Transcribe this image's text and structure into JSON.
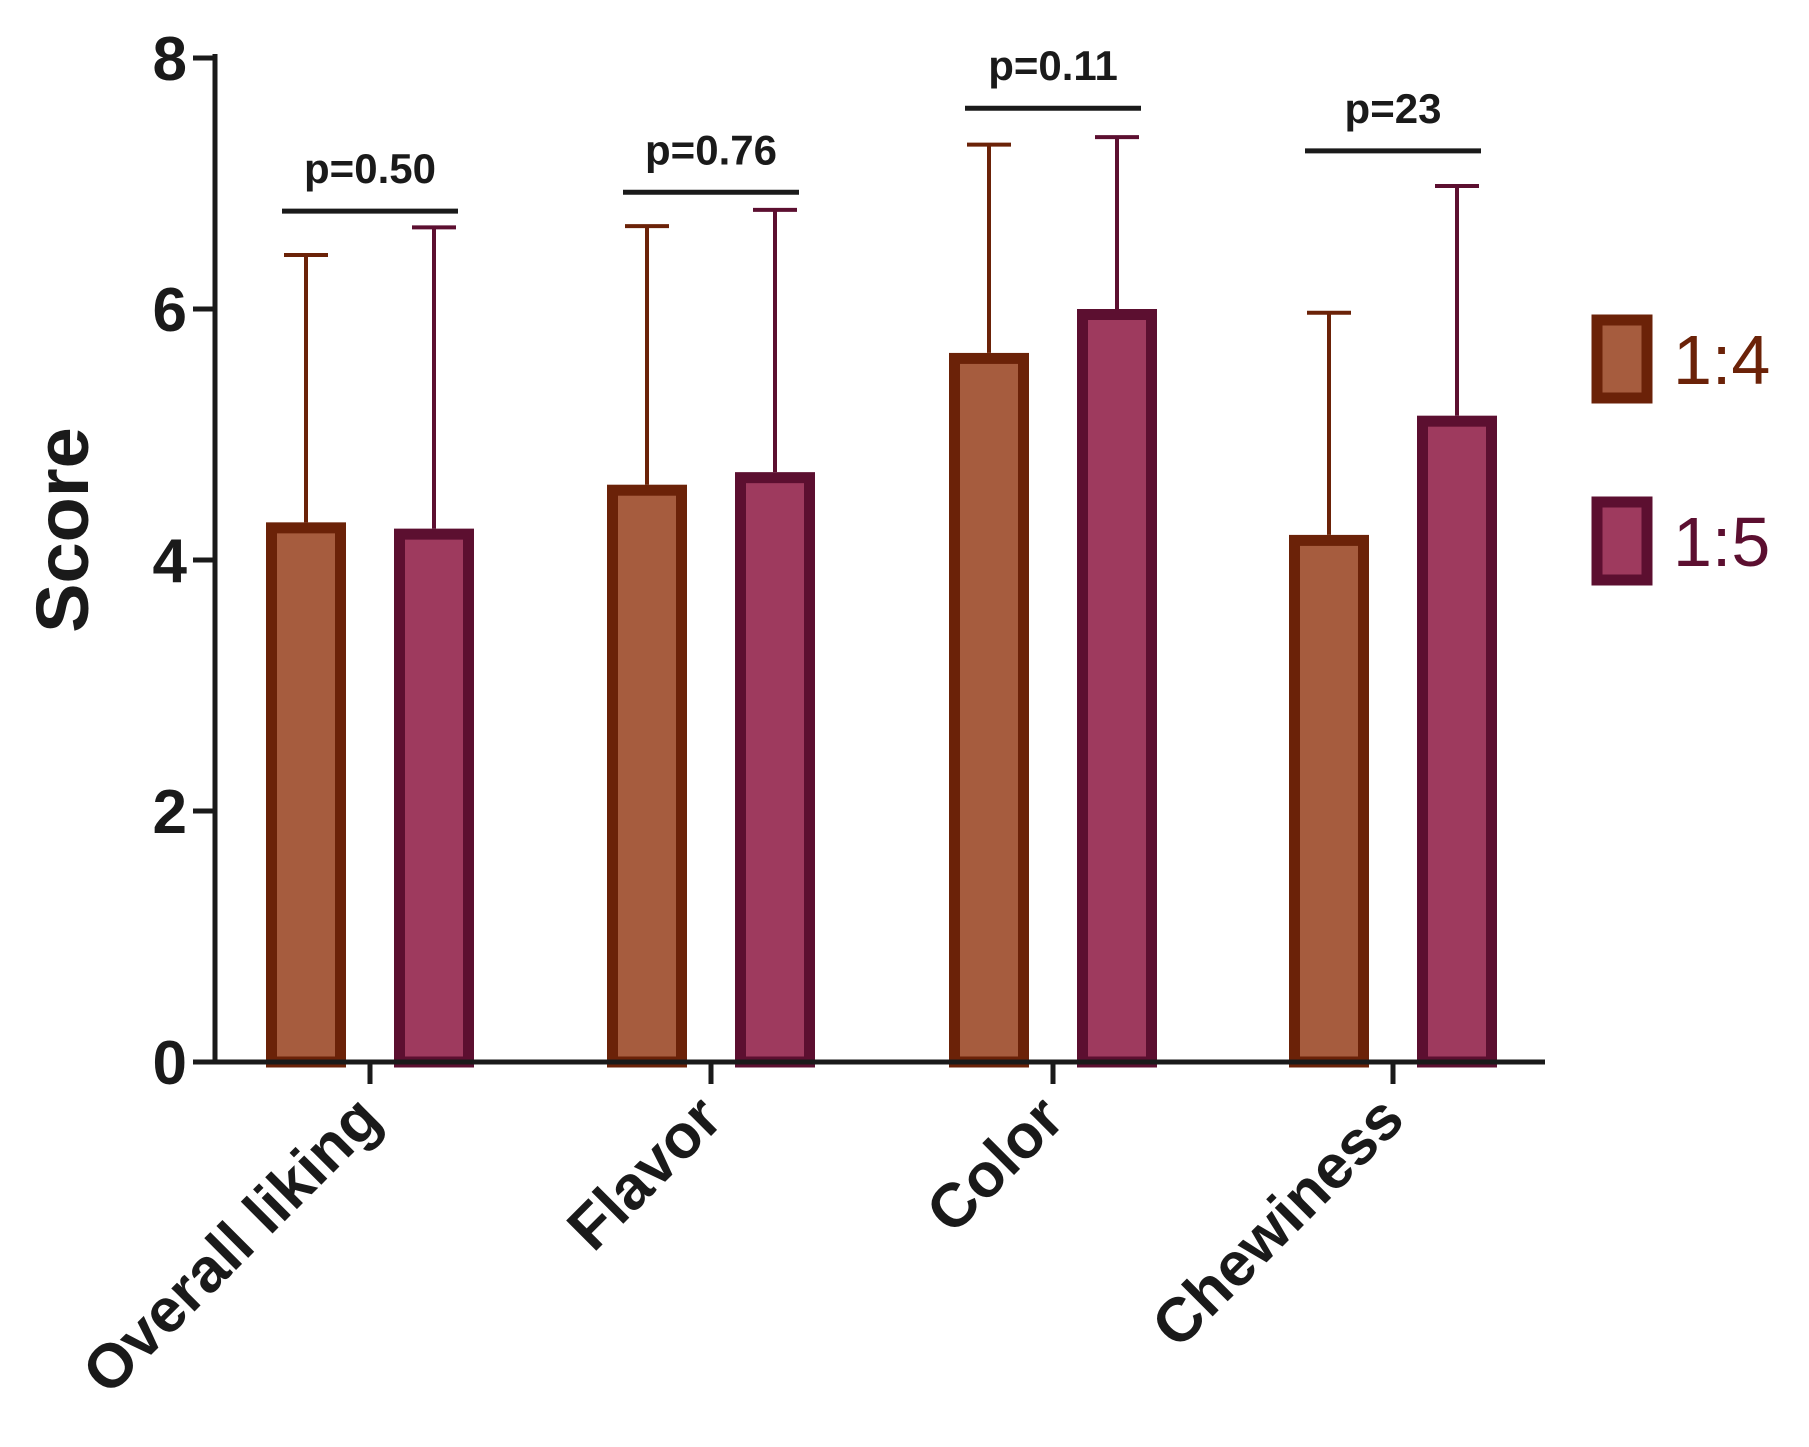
{
  "chart_data": {
    "type": "bar",
    "title": "",
    "xlabel": "",
    "ylabel": "Score",
    "ylim": [
      0,
      8
    ],
    "yticks": [
      "0",
      "2",
      "4",
      "6",
      "8"
    ],
    "categories": [
      "Overall liking",
      "Flavor",
      "Color",
      "Chewiness"
    ],
    "series": [
      {
        "name": "1:4",
        "values": [
          4.3,
          4.6,
          5.65,
          4.2
        ],
        "errors": [
          2.13,
          2.06,
          1.66,
          1.77
        ],
        "fill": "#a65c3e",
        "stroke": "#6b2208"
      },
      {
        "name": "1:5",
        "values": [
          4.25,
          4.7,
          6.0,
          5.15
        ],
        "errors": [
          2.4,
          2.09,
          1.37,
          1.83
        ],
        "fill": "#9e3a5e",
        "stroke": "#5c0f30"
      }
    ],
    "annotations": [
      {
        "text": "p=0.50",
        "category": 0,
        "bracket_y": 6.78
      },
      {
        "text": "p=0.76",
        "category": 1,
        "bracket_y": 6.93
      },
      {
        "text": "p=0.11",
        "category": 2,
        "bracket_y": 7.6
      },
      {
        "text": "p=23",
        "category": 3,
        "bracket_y": 7.26
      }
    ],
    "legend": {
      "position": "right"
    },
    "grid": false
  }
}
